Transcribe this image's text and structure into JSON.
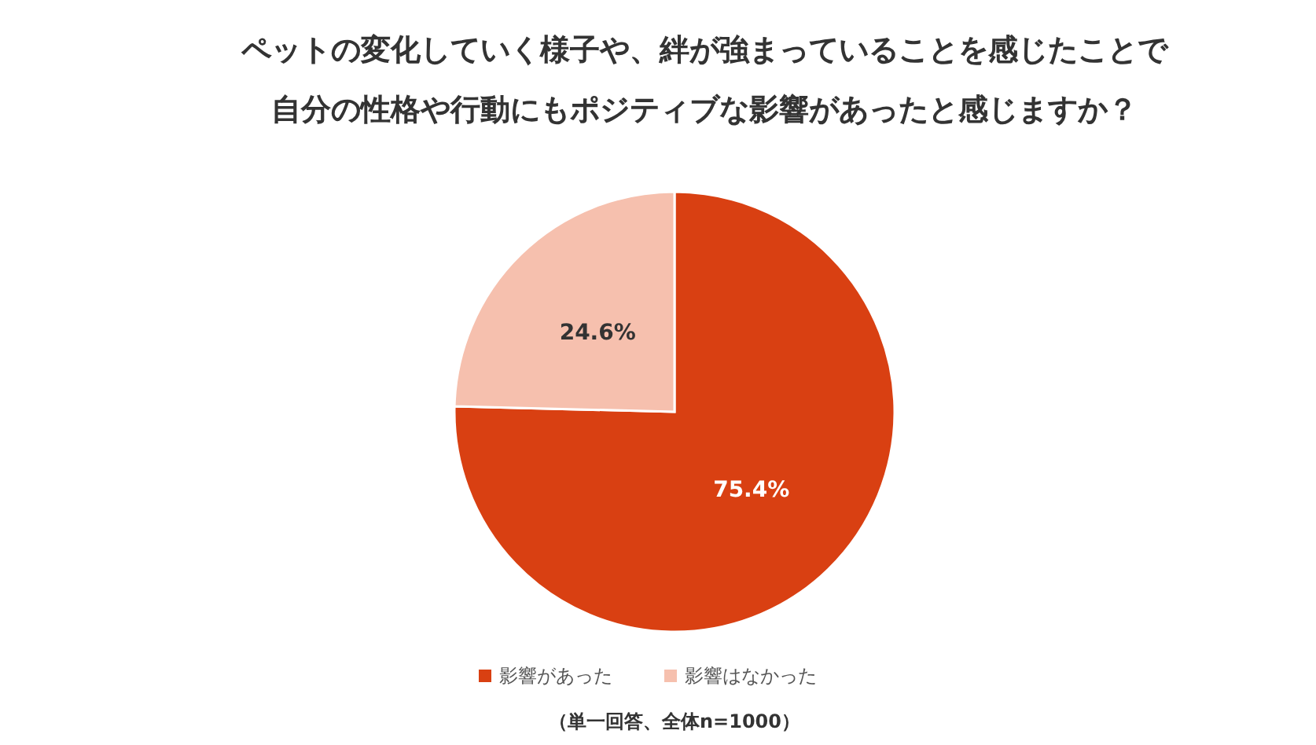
{
  "chart_data": {
    "type": "pie",
    "title": "ペットの変化していく様子や、絆が強まっていることを感じたことで自分の性格や行動にもポジティブな影響があったと感じますか？",
    "categories": [
      "影響があった",
      "影響はなかった"
    ],
    "values": [
      75.4,
      24.6
    ],
    "colors": [
      "#d94012",
      "#f6c0ae"
    ],
    "value_labels": [
      "75.4%",
      "24.6%"
    ],
    "legend": "bottom",
    "annotations": [
      "（単一回答、全体n=1000）"
    ]
  }
}
